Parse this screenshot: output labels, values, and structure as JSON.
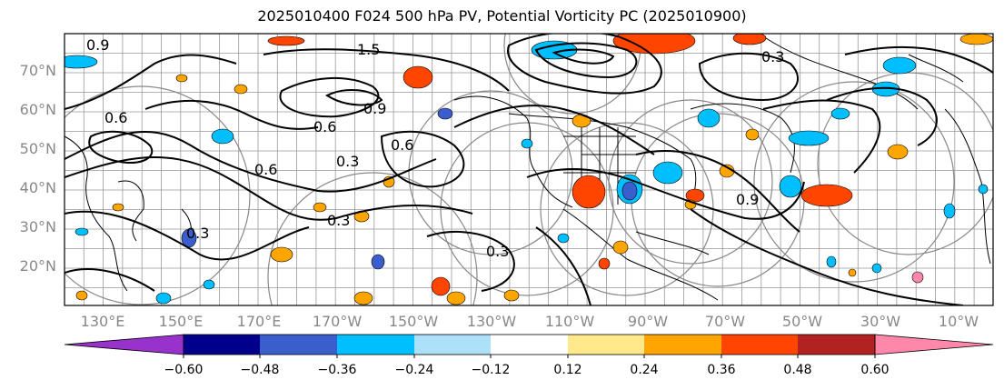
{
  "title": "2025010400 F024 500 hPa PV, Potential Vorticity PC (2025010900)",
  "map": {
    "lat_labels": [
      "70°N",
      "60°N",
      "50°N",
      "40°N",
      "30°N",
      "20°N"
    ],
    "lon_labels": [
      "130°E",
      "150°E",
      "170°E",
      "170°W",
      "150°W",
      "130°W",
      "110°W",
      "90°W",
      "70°W",
      "50°W",
      "30°W",
      "10°W"
    ],
    "contour_labels": [
      "0.9",
      "1.5",
      "0.6",
      "0.9",
      "0.6",
      "0.6",
      "0.3",
      "0.3",
      "0.3",
      "0.9",
      "0.3",
      "0.3",
      "0.6"
    ]
  },
  "colorbar": {
    "tick_labels": [
      "−0.60",
      "−0.48",
      "−0.36",
      "−0.24",
      "−0.12",
      "0.12",
      "0.24",
      "0.36",
      "0.48",
      "0.60"
    ],
    "colors": [
      "#9932CC",
      "#00008B",
      "#3A5FCD",
      "#00BFFF",
      "#ADE1FA",
      "#FFFFFF",
      "#FFE98A",
      "#FFA500",
      "#FF4500",
      "#B22222",
      "#FF88AA",
      "#FF88AA"
    ]
  },
  "palette": {
    "blue": "#00BFFF",
    "deep_blue": "#3A5FCD",
    "light_blue": "#ADE1FA",
    "yellow": "#FFE98A",
    "orange": "#FFA500",
    "red": "#FF4500"
  }
}
